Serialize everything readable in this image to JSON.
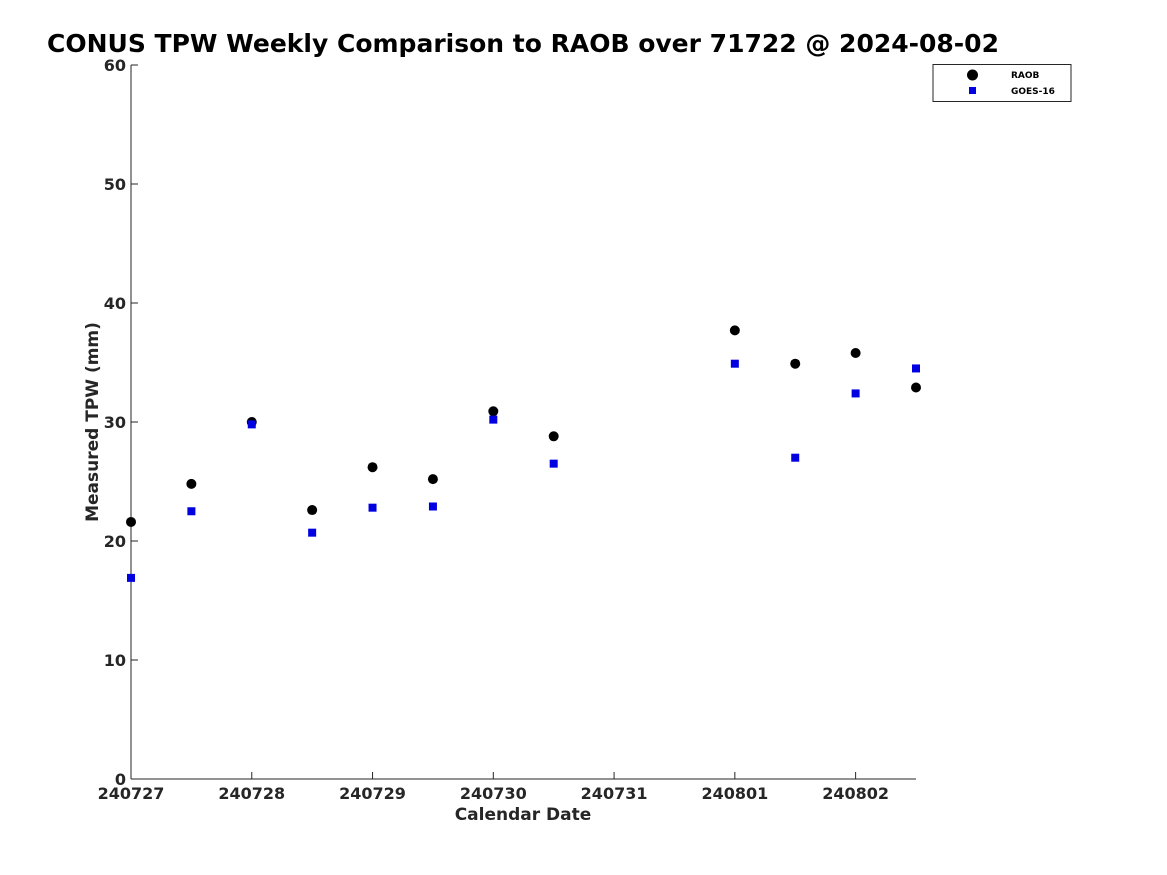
{
  "chart_data": {
    "type": "scatter",
    "title": "CONUS TPW Weekly Comparison to RAOB over 71722 @ 2024-08-02",
    "xlabel": "Calendar Date",
    "ylabel": "Measured TPW (mm)",
    "xlim": [
      240727,
      240802.5
    ],
    "ylim": [
      0,
      60
    ],
    "x_tick_labels": [
      "240727",
      "240728",
      "240729",
      "240730",
      "240731",
      "240801",
      "240802"
    ],
    "y_ticks": [
      0,
      10,
      20,
      30,
      40,
      50,
      60
    ],
    "grid": false,
    "legend_position": "top-right",
    "series": [
      {
        "name": "RAOB",
        "marker": "circle",
        "color": "#000000",
        "points": [
          {
            "x": 240727.0,
            "y": 21.6
          },
          {
            "x": 240727.5,
            "y": 24.8
          },
          {
            "x": 240728.0,
            "y": 30.0
          },
          {
            "x": 240728.5,
            "y": 22.6
          },
          {
            "x": 240729.0,
            "y": 26.2
          },
          {
            "x": 240729.5,
            "y": 25.2
          },
          {
            "x": 240730.0,
            "y": 30.9
          },
          {
            "x": 240730.5,
            "y": 28.8
          },
          {
            "x": 240801.0,
            "y": 37.7
          },
          {
            "x": 240801.5,
            "y": 34.9
          },
          {
            "x": 240802.0,
            "y": 35.8
          },
          {
            "x": 240802.5,
            "y": 32.9
          }
        ]
      },
      {
        "name": "GOES-16",
        "marker": "square",
        "color": "#0000e0",
        "points": [
          {
            "x": 240727.0,
            "y": 16.9
          },
          {
            "x": 240727.5,
            "y": 22.5
          },
          {
            "x": 240728.0,
            "y": 29.8
          },
          {
            "x": 240728.5,
            "y": 20.7
          },
          {
            "x": 240729.0,
            "y": 22.8
          },
          {
            "x": 240729.5,
            "y": 22.9
          },
          {
            "x": 240730.0,
            "y": 30.2
          },
          {
            "x": 240730.5,
            "y": 26.5
          },
          {
            "x": 240801.0,
            "y": 34.9
          },
          {
            "x": 240801.5,
            "y": 27.0
          },
          {
            "x": 240802.0,
            "y": 32.4
          },
          {
            "x": 240802.5,
            "y": 34.5
          }
        ]
      }
    ]
  }
}
